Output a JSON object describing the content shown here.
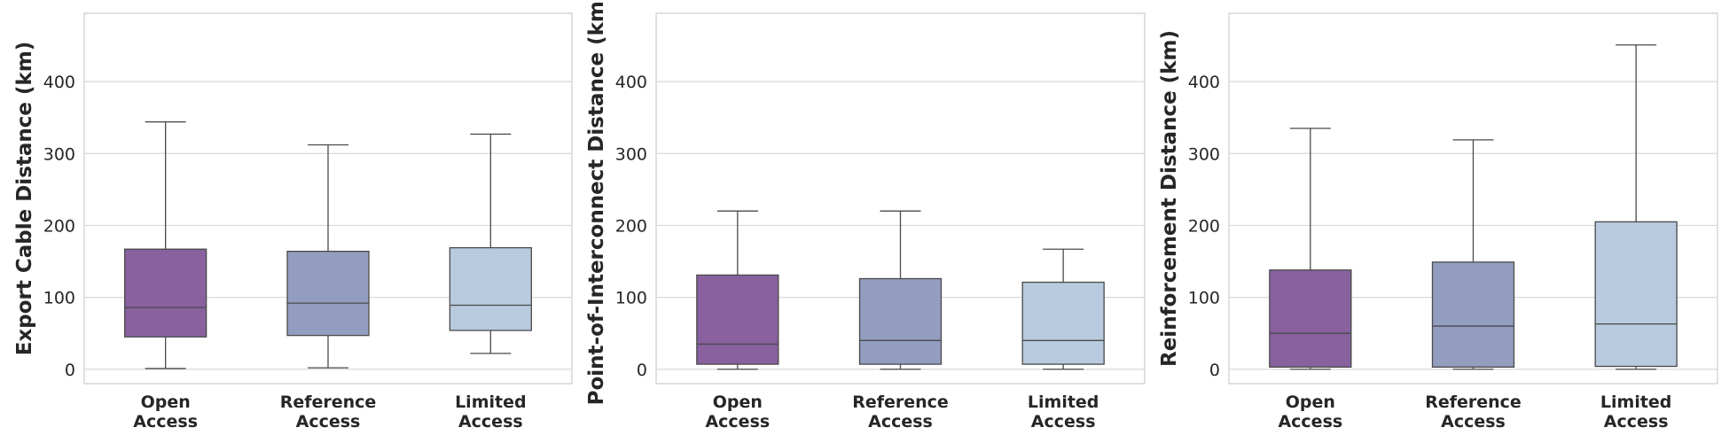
{
  "figure": {
    "categories": [
      [
        "Open",
        "Access"
      ],
      [
        "Reference",
        "Access"
      ],
      [
        "Limited",
        "Access"
      ]
    ],
    "palette": [
      "#88619e",
      "#939dc0",
      "#b8cadd"
    ],
    "y_ticks": [
      0,
      100,
      200,
      300,
      400
    ]
  },
  "chart_data": [
    {
      "type": "box",
      "ylabel": "Export Cable Distance (km)",
      "ylim": [
        -20,
        495
      ],
      "grid": true,
      "boxes": [
        {
          "category": "Open Access",
          "min": 1,
          "q1": 45,
          "median": 86,
          "q3": 167,
          "max": 344
        },
        {
          "category": "Reference Access",
          "min": 2,
          "q1": 47,
          "median": 92,
          "q3": 164,
          "max": 312
        },
        {
          "category": "Limited Access",
          "min": 22,
          "q1": 54,
          "median": 89,
          "q3": 169,
          "max": 327
        }
      ]
    },
    {
      "type": "box",
      "ylabel": "Point-of-Interconnect Distance (km)",
      "ylim": [
        -20,
        495
      ],
      "grid": true,
      "boxes": [
        {
          "category": "Open Access",
          "min": 0,
          "q1": 7,
          "median": 35,
          "q3": 131,
          "max": 220
        },
        {
          "category": "Reference Access",
          "min": 0,
          "q1": 7,
          "median": 40,
          "q3": 126,
          "max": 220
        },
        {
          "category": "Limited Access",
          "min": 0,
          "q1": 7,
          "median": 40,
          "q3": 121,
          "max": 167
        }
      ]
    },
    {
      "type": "box",
      "ylabel": "Reinforcement Distance (km)",
      "ylim": [
        -20,
        495
      ],
      "grid": true,
      "boxes": [
        {
          "category": "Open Access",
          "min": 0,
          "q1": 3,
          "median": 50,
          "q3": 138,
          "max": 335
        },
        {
          "category": "Reference Access",
          "min": 0,
          "q1": 3,
          "median": 60,
          "q3": 149,
          "max": 319
        },
        {
          "category": "Limited Access",
          "min": 0,
          "q1": 4,
          "median": 63,
          "q3": 205,
          "max": 451
        }
      ]
    }
  ]
}
